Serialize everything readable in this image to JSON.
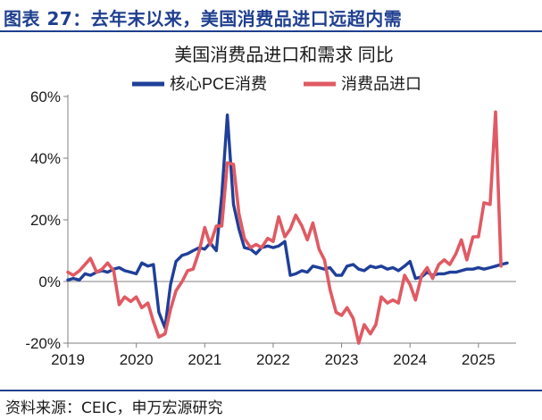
{
  "figure": {
    "title": "图表 27：去年末以来，美国消费品进口远超内需",
    "source": "资料来源：CEIC，申万宏源研究"
  },
  "colors": {
    "blue": "#1f3f99",
    "red": "#e05a63",
    "axis": "#808080",
    "title_blue": "#1f3f8f"
  },
  "chart_data": {
    "type": "line",
    "title": "美国消费品进口和需求 同比",
    "x_unit": "year (decimal)",
    "xlim": [
      2019.0,
      2025.55
    ],
    "ylim": [
      -20,
      60
    ],
    "y_ticks": [
      -20,
      0,
      20,
      40,
      60
    ],
    "y_tick_labels": [
      "-20%",
      "0%",
      "20%",
      "40%",
      "60%"
    ],
    "x_ticks": [
      2019,
      2020,
      2021,
      2022,
      2023,
      2024,
      2025
    ],
    "x_tick_labels": [
      "2019",
      "2020",
      "2021",
      "2022",
      "2023",
      "2024",
      "2025"
    ],
    "legend_position": "top",
    "grid": false,
    "series": [
      {
        "name": "核心PCE消费",
        "color": "#1f3f99",
        "points": [
          [
            2019.0,
            0.5
          ],
          [
            2019.08,
            1.0
          ],
          [
            2019.17,
            0.5
          ],
          [
            2019.25,
            2.5
          ],
          [
            2019.33,
            2.0
          ],
          [
            2019.42,
            3.0
          ],
          [
            2019.5,
            3.5
          ],
          [
            2019.58,
            3.0
          ],
          [
            2019.67,
            4.0
          ],
          [
            2019.75,
            4.5
          ],
          [
            2019.83,
            3.5
          ],
          [
            2019.92,
            3.0
          ],
          [
            2020.0,
            2.5
          ],
          [
            2020.08,
            6.0
          ],
          [
            2020.17,
            5.0
          ],
          [
            2020.25,
            5.5
          ],
          [
            2020.33,
            -10.0
          ],
          [
            2020.42,
            -15.0
          ],
          [
            2020.5,
            -1.0
          ],
          [
            2020.58,
            6.5
          ],
          [
            2020.67,
            8.5
          ],
          [
            2020.75,
            9.0
          ],
          [
            2020.83,
            10.0
          ],
          [
            2020.92,
            11.0
          ],
          [
            2021.0,
            10.5
          ],
          [
            2021.08,
            12.5
          ],
          [
            2021.17,
            10.0
          ],
          [
            2021.25,
            28.0
          ],
          [
            2021.33,
            54.0
          ],
          [
            2021.42,
            25.0
          ],
          [
            2021.5,
            17.0
          ],
          [
            2021.58,
            11.0
          ],
          [
            2021.67,
            10.5
          ],
          [
            2021.75,
            9.0
          ],
          [
            2021.83,
            11.0
          ],
          [
            2021.92,
            11.5
          ],
          [
            2022.0,
            11.0
          ],
          [
            2022.08,
            11.5
          ],
          [
            2022.17,
            13.0
          ],
          [
            2022.25,
            2.0
          ],
          [
            2022.33,
            2.5
          ],
          [
            2022.42,
            3.5
          ],
          [
            2022.5,
            3.0
          ],
          [
            2022.58,
            5.0
          ],
          [
            2022.67,
            4.5
          ],
          [
            2022.75,
            4.0
          ],
          [
            2022.83,
            4.5
          ],
          [
            2022.92,
            2.0
          ],
          [
            2023.0,
            2.0
          ],
          [
            2023.08,
            5.0
          ],
          [
            2023.17,
            5.5
          ],
          [
            2023.25,
            4.0
          ],
          [
            2023.33,
            3.5
          ],
          [
            2023.42,
            5.0
          ],
          [
            2023.5,
            4.5
          ],
          [
            2023.58,
            5.0
          ],
          [
            2023.67,
            4.0
          ],
          [
            2023.75,
            4.5
          ],
          [
            2023.83,
            3.5
          ],
          [
            2023.92,
            5.0
          ],
          [
            2024.0,
            6.5
          ],
          [
            2024.08,
            1.0
          ],
          [
            2024.17,
            1.5
          ],
          [
            2024.25,
            3.0
          ],
          [
            2024.33,
            2.0
          ],
          [
            2024.42,
            2.5
          ],
          [
            2024.5,
            2.5
          ],
          [
            2024.58,
            3.0
          ],
          [
            2024.67,
            3.0
          ],
          [
            2024.75,
            3.5
          ],
          [
            2024.83,
            4.0
          ],
          [
            2024.92,
            4.0
          ],
          [
            2025.0,
            4.5
          ],
          [
            2025.08,
            4.0
          ],
          [
            2025.17,
            4.5
          ],
          [
            2025.25,
            5.0
          ],
          [
            2025.33,
            5.5
          ],
          [
            2025.42,
            6.0
          ]
        ]
      },
      {
        "name": "消费品进口",
        "color": "#e05a63",
        "points": [
          [
            2019.0,
            3.0
          ],
          [
            2019.08,
            2.0
          ],
          [
            2019.17,
            3.5
          ],
          [
            2019.25,
            5.5
          ],
          [
            2019.33,
            7.5
          ],
          [
            2019.42,
            3.0
          ],
          [
            2019.5,
            4.0
          ],
          [
            2019.58,
            6.0
          ],
          [
            2019.67,
            3.5
          ],
          [
            2019.75,
            -7.5
          ],
          [
            2019.83,
            -5.0
          ],
          [
            2019.92,
            -6.5
          ],
          [
            2020.0,
            -5.0
          ],
          [
            2020.08,
            -8.5
          ],
          [
            2020.17,
            -7.0
          ],
          [
            2020.25,
            -13.0
          ],
          [
            2020.33,
            -18.0
          ],
          [
            2020.42,
            -17.0
          ],
          [
            2020.5,
            -9.0
          ],
          [
            2020.58,
            -3.0
          ],
          [
            2020.67,
            0.0
          ],
          [
            2020.75,
            3.5
          ],
          [
            2020.83,
            4.0
          ],
          [
            2020.92,
            10.0
          ],
          [
            2021.0,
            17.5
          ],
          [
            2021.08,
            12.0
          ],
          [
            2021.17,
            18.0
          ],
          [
            2021.25,
            18.0
          ],
          [
            2021.33,
            38.5
          ],
          [
            2021.42,
            38.0
          ],
          [
            2021.5,
            22.0
          ],
          [
            2021.58,
            14.0
          ],
          [
            2021.67,
            11.0
          ],
          [
            2021.75,
            12.0
          ],
          [
            2021.83,
            11.0
          ],
          [
            2021.92,
            14.0
          ],
          [
            2022.0,
            13.0
          ],
          [
            2022.08,
            21.0
          ],
          [
            2022.17,
            14.5
          ],
          [
            2022.25,
            17.0
          ],
          [
            2022.33,
            21.5
          ],
          [
            2022.42,
            18.0
          ],
          [
            2022.5,
            13.5
          ],
          [
            2022.58,
            19.0
          ],
          [
            2022.67,
            10.5
          ],
          [
            2022.75,
            7.0
          ],
          [
            2022.83,
            -2.5
          ],
          [
            2022.92,
            -10.0
          ],
          [
            2023.0,
            -11.0
          ],
          [
            2023.08,
            -8.5
          ],
          [
            2023.17,
            -12.0
          ],
          [
            2023.25,
            -20.0
          ],
          [
            2023.33,
            -14.0
          ],
          [
            2023.42,
            -17.0
          ],
          [
            2023.5,
            -14.0
          ],
          [
            2023.58,
            -5.0
          ],
          [
            2023.67,
            -7.0
          ],
          [
            2023.75,
            -6.0
          ],
          [
            2023.83,
            -7.0
          ],
          [
            2023.92,
            2.0
          ],
          [
            2024.0,
            -1.0
          ],
          [
            2024.08,
            -6.0
          ],
          [
            2024.17,
            2.0
          ],
          [
            2024.25,
            4.5
          ],
          [
            2024.33,
            1.0
          ],
          [
            2024.42,
            5.5
          ],
          [
            2024.5,
            7.0
          ],
          [
            2024.58,
            5.5
          ],
          [
            2024.67,
            9.0
          ],
          [
            2024.75,
            13.5
          ],
          [
            2024.83,
            7.0
          ],
          [
            2024.92,
            14.5
          ],
          [
            2025.0,
            14.5
          ],
          [
            2025.08,
            25.5
          ],
          [
            2025.17,
            25.0
          ],
          [
            2025.25,
            55.0
          ],
          [
            2025.33,
            5.0
          ]
        ]
      }
    ]
  }
}
